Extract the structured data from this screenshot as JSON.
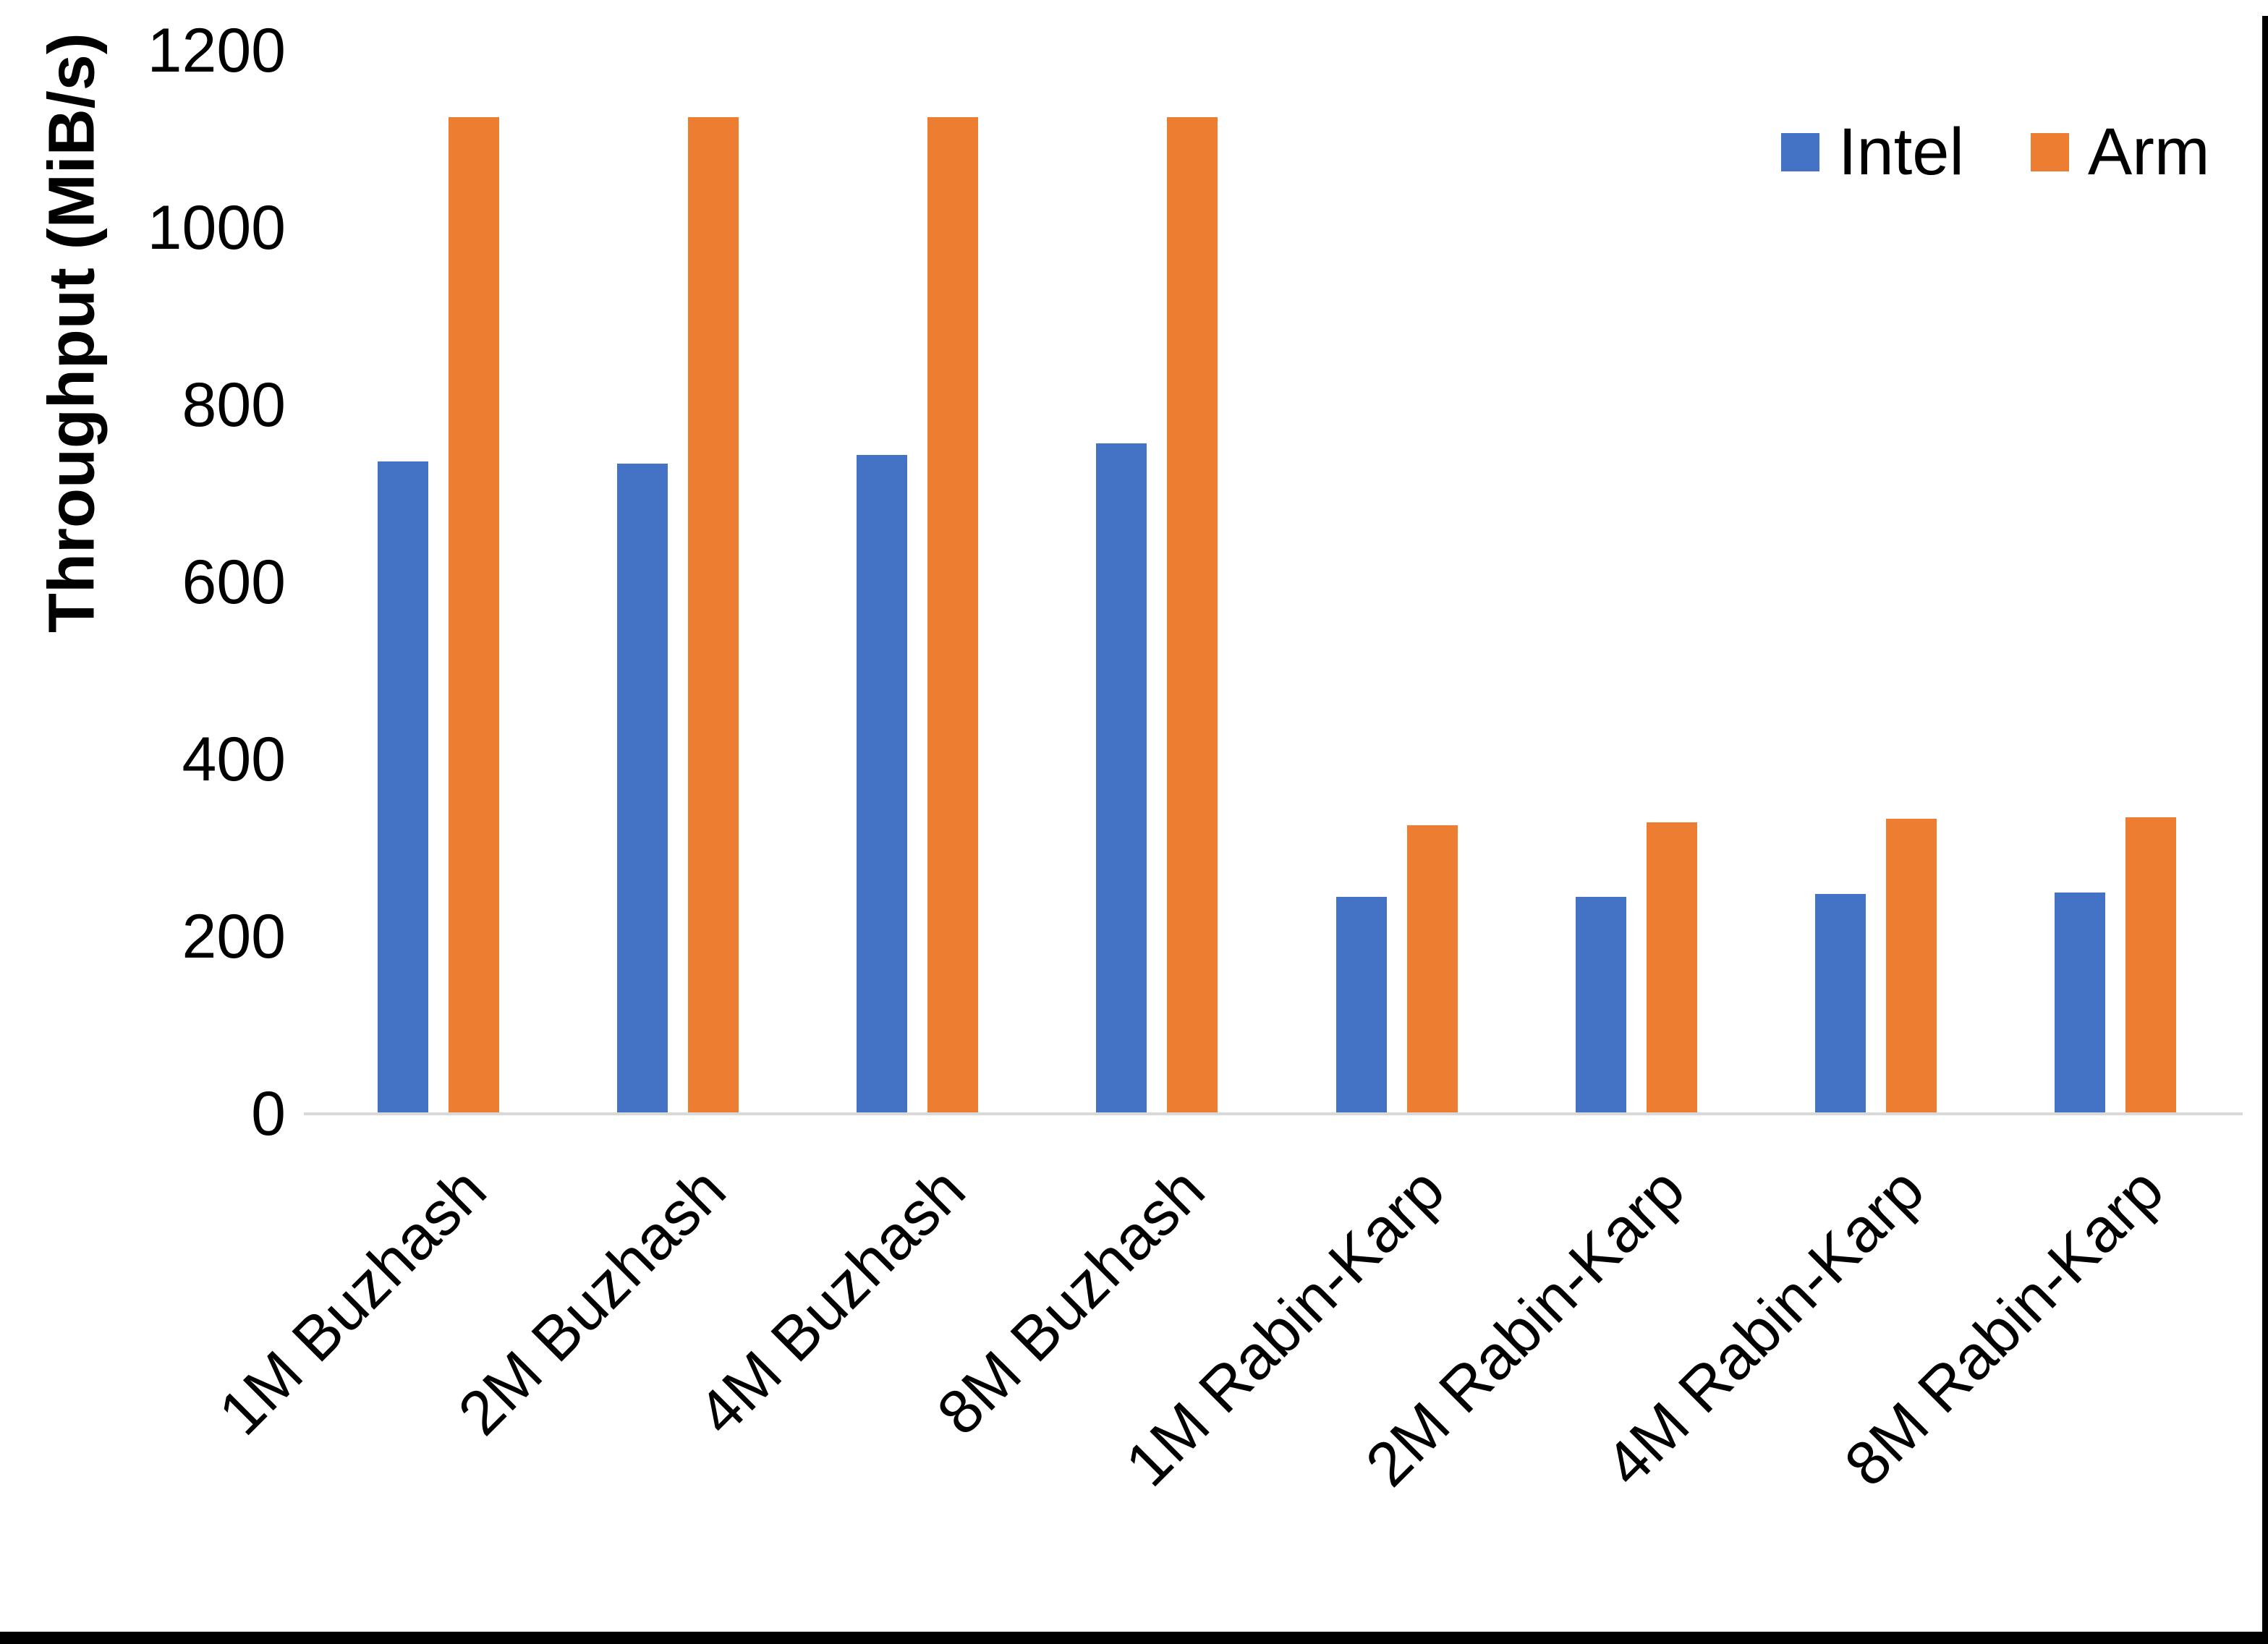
{
  "chart_data": {
    "type": "bar",
    "title": "",
    "xlabel": "",
    "ylabel": "Throughput (MiB/s)",
    "ylim": [
      0,
      1200
    ],
    "yticks": [
      0,
      200,
      400,
      600,
      800,
      1000,
      1200
    ],
    "grid": false,
    "legend_position": "top-right",
    "categories": [
      "1M Buzhash",
      "2M Buzhash",
      "4M Buzhash",
      "8M Buzhash",
      "1M Rabin-Karp",
      "2M Rabin-Karp",
      "4M Rabin-Karp",
      "8M Rabin-Karp"
    ],
    "series": [
      {
        "name": "Intel",
        "color": "#4472C4",
        "values": [
          736,
          734,
          744,
          757,
          245,
          245,
          248,
          250
        ]
      },
      {
        "name": "Arm",
        "color": "#ED7D31",
        "values": [
          1125,
          1125,
          1125,
          1125,
          326,
          329,
          333,
          335
        ]
      }
    ]
  },
  "colors": {
    "axis_line": "#D9D9D9",
    "text": "#000000",
    "page_border": "#000000"
  }
}
